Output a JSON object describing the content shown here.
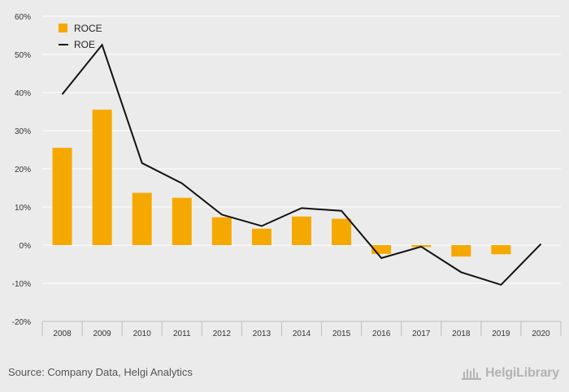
{
  "chart_data": {
    "type": "bar",
    "categories": [
      "2008",
      "2009",
      "2010",
      "2011",
      "2012",
      "2013",
      "2014",
      "2015",
      "2016",
      "2017",
      "2018",
      "2019",
      "2020"
    ],
    "series": [
      {
        "name": "ROCE",
        "type": "bar",
        "color": "#f5a900",
        "values": [
          25.5,
          35.5,
          13.7,
          12.4,
          7.3,
          4.3,
          7.5,
          6.9,
          -2.3,
          -0.5,
          -3.0,
          -2.4,
          null
        ]
      },
      {
        "name": "ROE",
        "type": "line",
        "color": "#111111",
        "values": [
          39.5,
          52.5,
          21.5,
          16.2,
          8.0,
          5.0,
          9.7,
          9.0,
          -3.4,
          -0.4,
          -7.1,
          -10.4,
          0.3
        ]
      }
    ],
    "ylim": [
      -20,
      60
    ],
    "yticks": [
      -20,
      -10,
      0,
      10,
      20,
      30,
      40,
      50,
      60
    ],
    "ytick_labels": [
      "-20%",
      "-10%",
      "0%",
      "10%",
      "20%",
      "30%",
      "40%",
      "50%",
      "60%"
    ],
    "legend_position": "top-left",
    "grid": true
  },
  "footer": {
    "source": "Source: Company Data, Helgi Analytics",
    "brand": "HelgiLibrary"
  }
}
